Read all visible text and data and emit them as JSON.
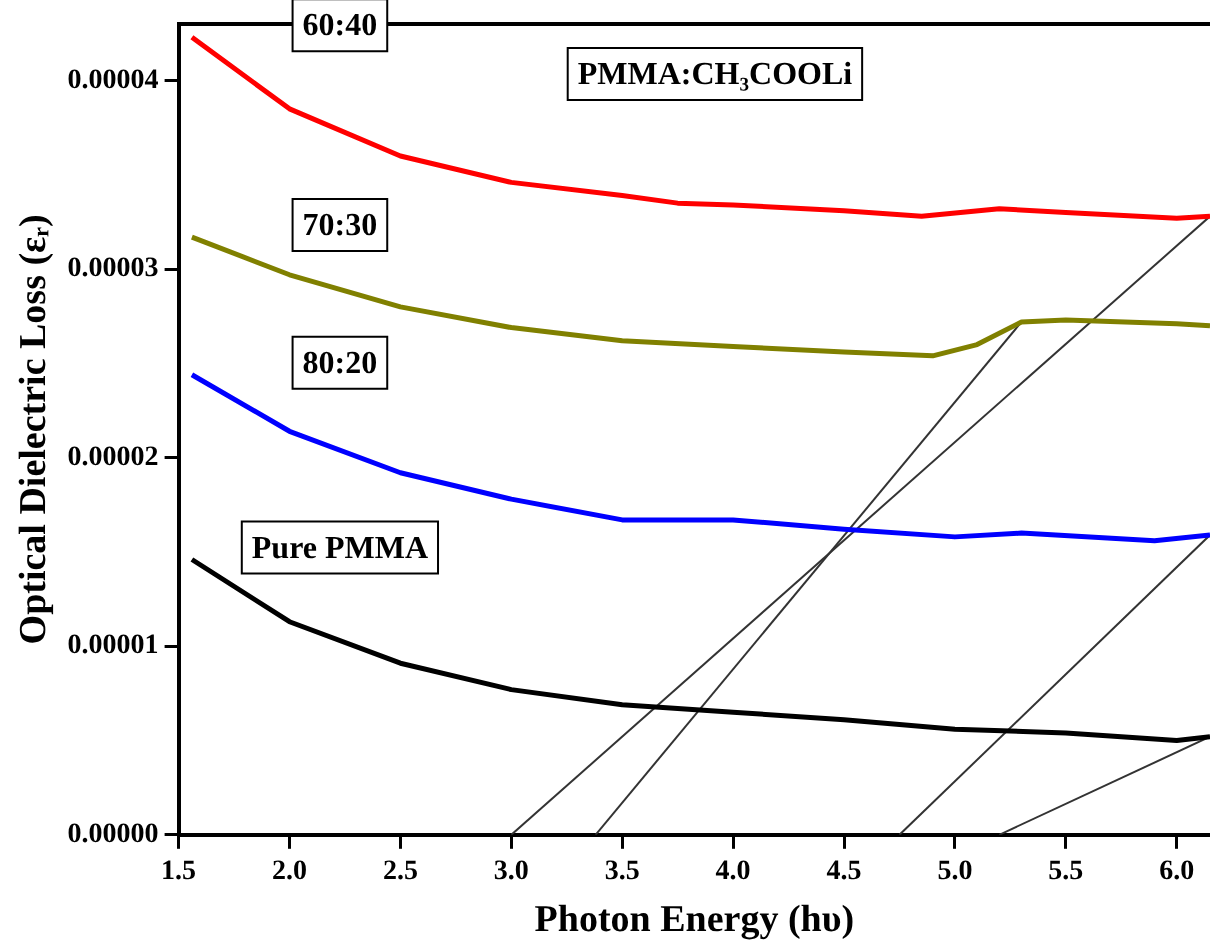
{
  "chart_data": {
    "type": "line",
    "title": "PMMA:CH₃COOLi",
    "xlabel": "Photon Energy (hυ)",
    "ylabel": "Optical Dielectric Loss (εᵣ)",
    "xlim": [
      1.5,
      6.15
    ],
    "xticks": [
      {
        "value": 1.5,
        "label": "1.5"
      },
      {
        "value": 2,
        "label": "2.0"
      },
      {
        "value": 2.5,
        "label": "2.5"
      },
      {
        "value": 3,
        "label": "3.0"
      },
      {
        "value": 3.5,
        "label": "3.5"
      },
      {
        "value": 4,
        "label": "4.0"
      },
      {
        "value": 4.5,
        "label": "4.5"
      },
      {
        "value": 5,
        "label": "5.0"
      },
      {
        "value": 5.5,
        "label": "5.5"
      },
      {
        "value": 6,
        "label": "6.0"
      }
    ],
    "ylim": [
      0,
      4.3e-05
    ],
    "yticks": [
      {
        "value": 0,
        "label": "0.00000"
      },
      {
        "value": 1e-05,
        "label": "0.00001"
      },
      {
        "value": 2e-05,
        "label": "0.00002"
      },
      {
        "value": 3e-05,
        "label": "0.00003"
      },
      {
        "value": 4e-05,
        "label": "0.00004"
      }
    ],
    "grid": false,
    "legend": false,
    "marker": "none",
    "line_style": "solid",
    "series": [
      {
        "name": "60:40",
        "color": "#ff0000",
        "x": [
          1.56,
          2.0,
          2.5,
          3.0,
          3.5,
          3.75,
          4.0,
          4.5,
          4.85,
          5.2,
          5.5,
          6.0,
          6.15
        ],
        "values": [
          4.23e-05,
          3.85e-05,
          3.6e-05,
          3.46e-05,
          3.39e-05,
          3.35e-05,
          3.34e-05,
          3.31e-05,
          3.28e-05,
          3.32e-05,
          3.3e-05,
          3.27e-05,
          3.28e-05
        ]
      },
      {
        "name": "70:30",
        "color": "#808000",
        "x": [
          1.56,
          2.0,
          2.5,
          3.0,
          3.5,
          4.0,
          4.5,
          4.9,
          5.1,
          5.3,
          5.5,
          6.0,
          6.15
        ],
        "values": [
          3.17e-05,
          2.97e-05,
          2.8e-05,
          2.69e-05,
          2.62e-05,
          2.59e-05,
          2.56e-05,
          2.54e-05,
          2.6e-05,
          2.72e-05,
          2.73e-05,
          2.71e-05,
          2.7e-05
        ]
      },
      {
        "name": "80:20",
        "color": "#0000ff",
        "x": [
          1.56,
          2.0,
          2.5,
          3.0,
          3.5,
          4.0,
          4.5,
          5.0,
          5.3,
          5.9,
          6.15
        ],
        "values": [
          2.44e-05,
          2.14e-05,
          1.92e-05,
          1.78e-05,
          1.67e-05,
          1.67e-05,
          1.62e-05,
          1.58e-05,
          1.6e-05,
          1.56e-05,
          1.59e-05
        ]
      },
      {
        "name": "Pure PMMA",
        "color": "#000000",
        "x": [
          1.56,
          2.0,
          2.5,
          3.0,
          3.5,
          4.0,
          4.5,
          5.0,
          5.5,
          6.0,
          6.15
        ],
        "values": [
          1.46e-05,
          1.13e-05,
          9.1e-06,
          7.7e-06,
          6.9e-06,
          6.5e-06,
          6.1e-06,
          5.6e-06,
          5.4e-06,
          5e-06,
          5.2e-06
        ]
      },
      {
        "type": "line",
        "color": "#333333",
        "x": [
          3.0,
          6.15
        ],
        "values": [
          0,
          3.28e-05
        ]
      },
      {
        "type": "line",
        "color": "#333333",
        "x": [
          3.38,
          5.3
        ],
        "values": [
          0,
          2.72e-05
        ]
      },
      {
        "type": "line",
        "color": "#333333",
        "x": [
          4.75,
          6.15
        ],
        "values": [
          0,
          1.59e-05
        ]
      },
      {
        "type": "line",
        "color": "#333333",
        "x": [
          5.2,
          6.15
        ],
        "values": [
          0,
          5.2e-06
        ]
      }
    ]
  }
}
